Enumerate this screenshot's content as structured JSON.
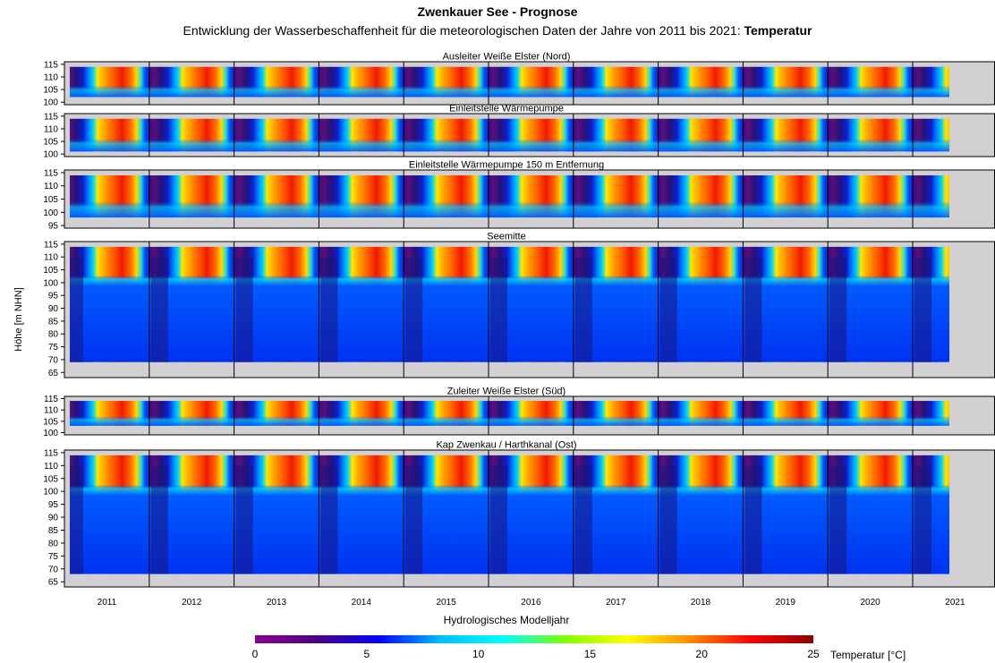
{
  "title": "Zwenkauer See - Prognose",
  "subtitle_prefix": "Entwicklung der Wasserbeschaffenheit für die meteorologischen Daten der Jahre von 2011 bis 2021:",
  "subtitle_emph": "Temperatur",
  "chart_data": {
    "type": "heatmap",
    "xlabel": "Hydrologisches Modelljahr",
    "ylabel": "Höhe [m NHN]",
    "x_categories": [
      "2011",
      "2012",
      "2013",
      "2014",
      "2015",
      "2016",
      "2017",
      "2018",
      "2019",
      "2020",
      "2021"
    ],
    "panels": [
      {
        "name": "Ausleiter Weiße Elster (Nord)",
        "ylim": [
          99,
          116
        ],
        "yticks": [
          100,
          105,
          110,
          115
        ],
        "depth_range": [
          102,
          114
        ]
      },
      {
        "name": "Einleitstelle Wärmepumpe",
        "ylim": [
          99,
          116
        ],
        "yticks": [
          100,
          105,
          110,
          115
        ],
        "depth_range": [
          101,
          114
        ]
      },
      {
        "name": "Einleitstelle Wärmepumpe 150 m Entfernung",
        "ylim": [
          94,
          116
        ],
        "yticks": [
          95,
          100,
          105,
          110,
          115
        ],
        "depth_range": [
          98,
          114
        ]
      },
      {
        "name": "Seemitte",
        "ylim": [
          63,
          116
        ],
        "yticks": [
          65,
          70,
          75,
          80,
          85,
          90,
          95,
          100,
          105,
          110,
          115
        ],
        "depth_range": [
          69,
          114
        ]
      },
      {
        "name": "Zuleiter Weiße Elster (Süd)",
        "ylim": [
          99,
          116
        ],
        "yticks": [
          100,
          105,
          110,
          115
        ],
        "depth_range": [
          103,
          114
        ]
      },
      {
        "name": "Kap Zwenkau / Harthkanal (Ost)",
        "ylim": [
          63,
          116
        ],
        "yticks": [
          65,
          70,
          75,
          80,
          85,
          90,
          95,
          100,
          105,
          110,
          115
        ],
        "depth_range": [
          68,
          114
        ]
      }
    ],
    "colorbar": {
      "label": "Temperatur [°C]",
      "range": [
        0,
        25
      ],
      "ticks": [
        "0",
        "5",
        "10",
        "15",
        "20",
        "25"
      ],
      "colors": [
        "#8b008b",
        "#4b0082",
        "#0000ff",
        "#00bfff",
        "#00ffff",
        "#7fff00",
        "#ffff00",
        "#ff8c00",
        "#ff0000",
        "#8b0000"
      ]
    },
    "background_color": "#d3d0d4"
  }
}
